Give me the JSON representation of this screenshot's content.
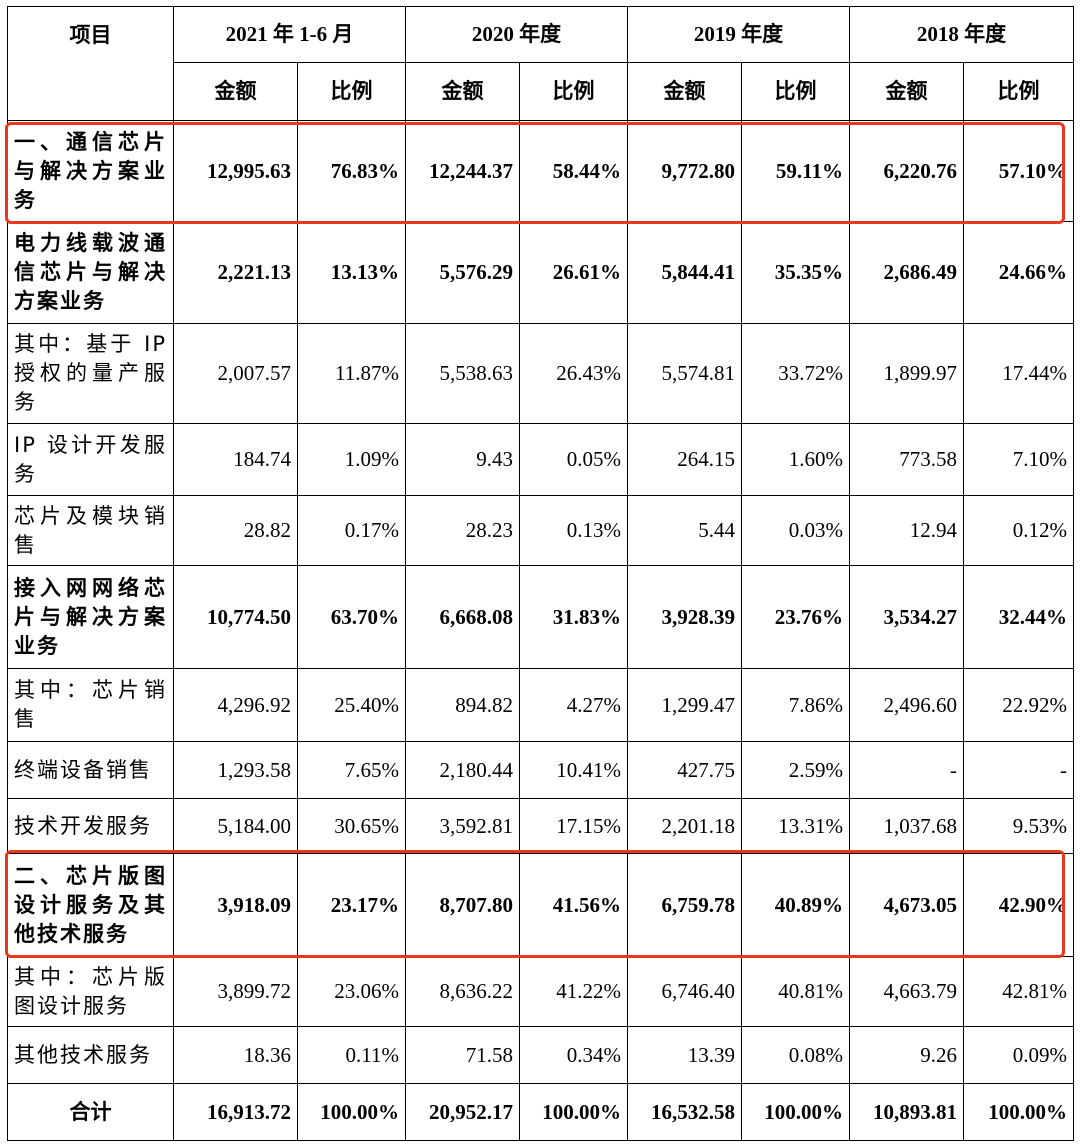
{
  "header": {
    "item_label": "项目",
    "periods": [
      "2021 年 1-6 月",
      "2020 年度",
      "2019 年度",
      "2018 年度"
    ],
    "amount_label": "金额",
    "ratio_label": "比例"
  },
  "rows": [
    {
      "label": "一、通信芯片与解决方案业务",
      "bold": true,
      "cells": [
        "12,995.63",
        "76.83%",
        "12,244.37",
        "58.44%",
        "9,772.80",
        "59.11%",
        "6,220.76",
        "57.10%"
      ]
    },
    {
      "label": "电力线载波通信芯片与解决方案业务",
      "bold": true,
      "cells": [
        "2,221.13",
        "13.13%",
        "5,576.29",
        "26.61%",
        "5,844.41",
        "35.35%",
        "2,686.49",
        "24.66%"
      ]
    },
    {
      "label": "其中：基于 IP 授权的量产服务",
      "bold": false,
      "cells": [
        "2,007.57",
        "11.87%",
        "5,538.63",
        "26.43%",
        "5,574.81",
        "33.72%",
        "1,899.97",
        "17.44%"
      ]
    },
    {
      "label": "IP 设计开发服务",
      "bold": false,
      "cells": [
        "184.74",
        "1.09%",
        "9.43",
        "0.05%",
        "264.15",
        "1.60%",
        "773.58",
        "7.10%"
      ]
    },
    {
      "label": "芯片及模块销售",
      "bold": false,
      "cells": [
        "28.82",
        "0.17%",
        "28.23",
        "0.13%",
        "5.44",
        "0.03%",
        "12.94",
        "0.12%"
      ]
    },
    {
      "label": "接入网网络芯片与解决方案业务",
      "bold": true,
      "cells": [
        "10,774.50",
        "63.70%",
        "6,668.08",
        "31.83%",
        "3,928.39",
        "23.76%",
        "3,534.27",
        "32.44%"
      ]
    },
    {
      "label": "其中：芯片销售",
      "bold": false,
      "cells": [
        "4,296.92",
        "25.40%",
        "894.82",
        "4.27%",
        "1,299.47",
        "7.86%",
        "2,496.60",
        "22.92%"
      ]
    },
    {
      "label": "终端设备销售",
      "bold": false,
      "cells": [
        "1,293.58",
        "7.65%",
        "2,180.44",
        "10.41%",
        "427.75",
        "2.59%",
        "-",
        "-"
      ]
    },
    {
      "label": "技术开发服务",
      "bold": false,
      "cells": [
        "5,184.00",
        "30.65%",
        "3,592.81",
        "17.15%",
        "2,201.18",
        "13.31%",
        "1,037.68",
        "9.53%"
      ]
    },
    {
      "label": "二、芯片版图设计服务及其他技术服务",
      "bold": true,
      "cells": [
        "3,918.09",
        "23.17%",
        "8,707.80",
        "41.56%",
        "6,759.78",
        "40.89%",
        "4,673.05",
        "42.90%"
      ]
    },
    {
      "label": "其中：芯片版图设计服务",
      "bold": false,
      "cells": [
        "3,899.72",
        "23.06%",
        "8,636.22",
        "41.22%",
        "6,746.40",
        "40.81%",
        "4,663.79",
        "42.81%"
      ]
    },
    {
      "label": "其他技术服务",
      "bold": false,
      "cells": [
        "18.36",
        "0.11%",
        "71.58",
        "0.34%",
        "13.39",
        "0.08%",
        "9.26",
        "0.09%"
      ]
    }
  ],
  "total": {
    "label": "合计",
    "cells": [
      "16,913.72",
      "100.00%",
      "20,952.17",
      "100.00%",
      "16,532.58",
      "100.00%",
      "10,893.81",
      "100.00%"
    ]
  },
  "colors": {
    "highlight": "#e8391f",
    "border": "#000000",
    "text": "#000000"
  }
}
